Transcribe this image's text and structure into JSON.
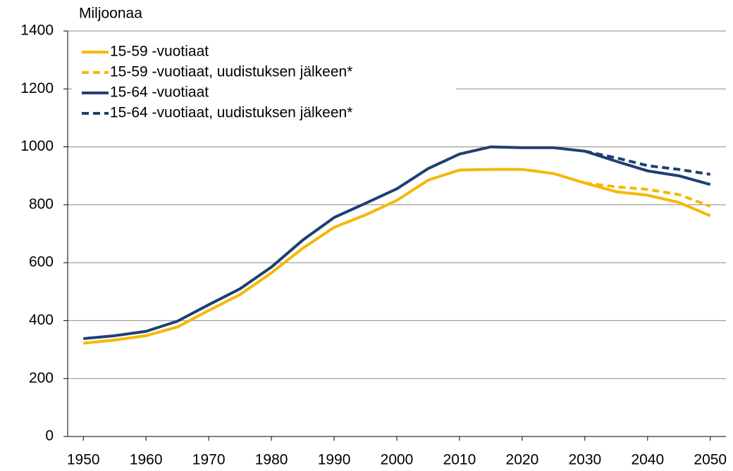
{
  "chart_data": {
    "type": "line",
    "y_label": "Miljoonaa",
    "x": [
      1950,
      1955,
      1960,
      1965,
      1970,
      1975,
      1980,
      1985,
      1990,
      1995,
      2000,
      2005,
      2010,
      2015,
      2020,
      2025,
      2030,
      2035,
      2040,
      2045,
      2050
    ],
    "xlim": [
      1947.5,
      2052.5
    ],
    "xticks": [
      1950,
      1960,
      1970,
      1980,
      1990,
      2000,
      2010,
      2020,
      2030,
      2040,
      2050
    ],
    "ylim": [
      0,
      1400
    ],
    "yticks": [
      0,
      200,
      400,
      600,
      800,
      1000,
      1200,
      1400
    ],
    "grid": true,
    "legend": "upper left",
    "series": [
      {
        "name": "15-59 -vuotiaat",
        "color": "#f5b800",
        "linestyle": "solid",
        "values": [
          322,
          333,
          348,
          378,
          435,
          490,
          565,
          650,
          722,
          765,
          815,
          885,
          920,
          922,
          922,
          908,
          875,
          845,
          833,
          808,
          762
        ]
      },
      {
        "name": "15-59 -vuotiaat, uudistuksen jälkeen*",
        "color": "#f5b800",
        "linestyle": "dashed",
        "values": [
          null,
          null,
          null,
          null,
          null,
          null,
          null,
          null,
          null,
          null,
          null,
          null,
          null,
          null,
          null,
          null,
          875,
          862,
          853,
          835,
          795
        ]
      },
      {
        "name": "15-64 -vuotiaat",
        "color": "#1f3f73",
        "linestyle": "solid",
        "values": [
          338,
          348,
          363,
          398,
          455,
          510,
          585,
          678,
          756,
          805,
          855,
          925,
          975,
          1000,
          997,
          997,
          985,
          950,
          917,
          900,
          870
        ]
      },
      {
        "name": "15-64 -vuotiaat, uudistuksen jälkeen*",
        "color": "#1f3f73",
        "linestyle": "dashed",
        "values": [
          null,
          null,
          null,
          null,
          null,
          null,
          null,
          null,
          null,
          null,
          null,
          null,
          null,
          null,
          null,
          null,
          985,
          962,
          935,
          922,
          905
        ]
      }
    ]
  }
}
